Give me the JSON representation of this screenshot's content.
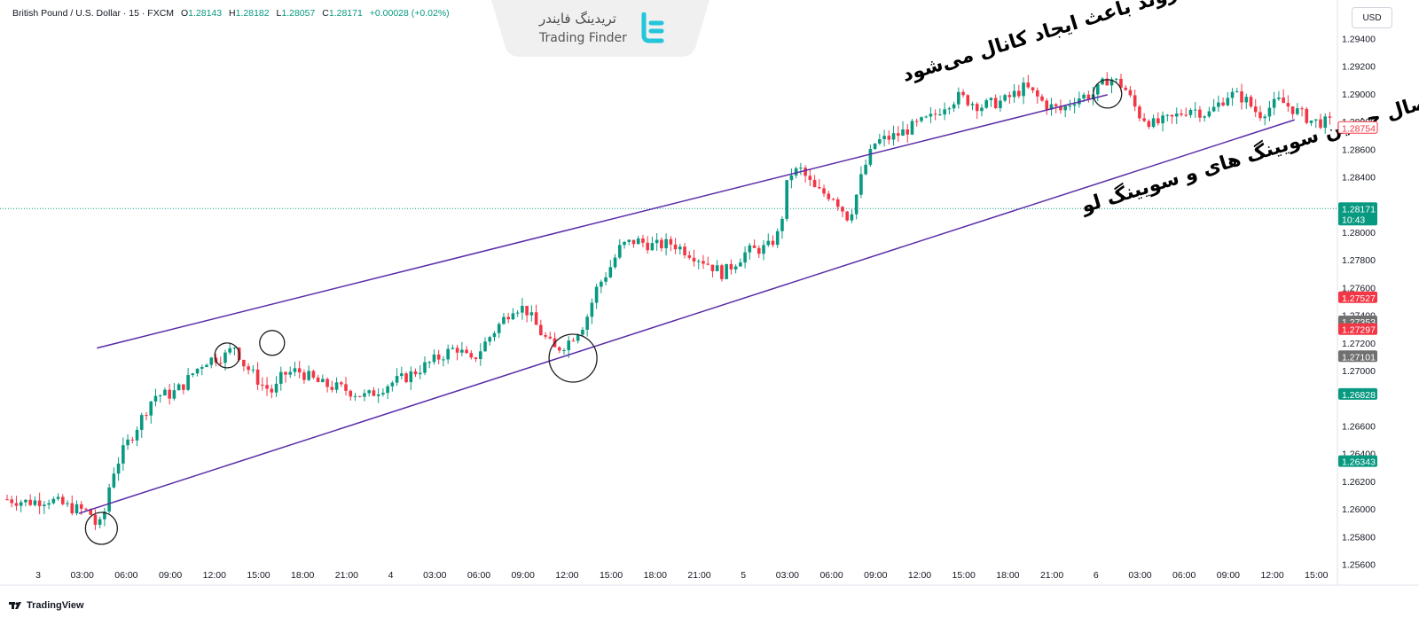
{
  "symbol_header": {
    "instrument": "British Pound / U.S. Dollar · 15 · FXCM",
    "open_label": "O",
    "open": "1.28143",
    "high_label": "H",
    "high": "1.28182",
    "low_label": "L",
    "low": "1.28057",
    "close_label": "C",
    "close": "1.28171",
    "change": "+0.00028 (+0.02%)"
  },
  "currency_button": "USD",
  "branding": {
    "name_fa": "تریدینگ فایندر",
    "name_en": "Trading Finder"
  },
  "price_axis": {
    "ticks": [
      "1.29400",
      "1.29200",
      "1.29000",
      "1.28800",
      "1.28600",
      "1.28400",
      "1.28000",
      "1.27800",
      "1.27600",
      "1.27400",
      "1.27200",
      "1.27000",
      "1.26600",
      "1.26400",
      "1.26200",
      "1.26000",
      "1.25800",
      "1.25600"
    ],
    "badges": [
      {
        "text": "1.28754",
        "price": 1.28754,
        "style": "outline-red"
      },
      {
        "text": "1.28171",
        "subtext": "10:43",
        "price": 1.28171,
        "style": "green"
      },
      {
        "text": "1.27527",
        "price": 1.27527,
        "style": "red"
      },
      {
        "text": "1.27353",
        "price": 1.27353,
        "style": "gray"
      },
      {
        "text": "1.27297",
        "price": 1.27297,
        "style": "red"
      },
      {
        "text": "1.27101",
        "price": 1.27101,
        "style": "gray"
      },
      {
        "text": "1.26828",
        "price": 1.26828,
        "style": "green"
      },
      {
        "text": "1.26343",
        "price": 1.26343,
        "style": "green"
      }
    ]
  },
  "time_axis": {
    "labels": [
      "3",
      "03:00",
      "06:00",
      "09:00",
      "12:00",
      "15:00",
      "18:00",
      "21:00",
      "4",
      "03:00",
      "06:00",
      "09:00",
      "12:00",
      "15:00",
      "18:00",
      "21:00",
      "5",
      "03:00",
      "06:00",
      "09:00",
      "12:00",
      "15:00",
      "18:00",
      "21:00",
      "6",
      "03:00",
      "06:00",
      "09:00",
      "12:00",
      "15:00"
    ]
  },
  "annotations": {
    "upper_text": "خط موازی هم راستا با خط روند باعث ایجاد کانال می‌شود",
    "lower_text_line1": "ایجاد خط روند با اتصال چندین سویینگ های و سویینگ لو"
  },
  "chart_data": {
    "type": "candlestick",
    "symbol": "GBPUSD",
    "timeframe": "15",
    "ylim": [
      1.2545,
      1.2955
    ],
    "path_points": [
      [
        0,
        1.2607
      ],
      [
        14,
        1.2605
      ],
      [
        28,
        1.2607
      ],
      [
        42,
        1.2601
      ],
      [
        55,
        1.2598
      ],
      [
        60,
        1.2587
      ],
      [
        64,
        1.259
      ],
      [
        66,
        1.2605
      ],
      [
        70,
        1.2625
      ],
      [
        78,
        1.2643
      ],
      [
        88,
        1.2662
      ],
      [
        98,
        1.2682
      ],
      [
        110,
        1.2683
      ],
      [
        118,
        1.269
      ],
      [
        124,
        1.2698
      ],
      [
        132,
        1.2707
      ],
      [
        146,
        1.2711
      ],
      [
        152,
        1.2718
      ],
      [
        158,
        1.2705
      ],
      [
        170,
        1.269
      ],
      [
        178,
        1.2684
      ],
      [
        184,
        1.2697
      ],
      [
        194,
        1.27
      ],
      [
        210,
        1.269
      ],
      [
        224,
        1.2687
      ],
      [
        240,
        1.2681
      ],
      [
        254,
        1.269
      ],
      [
        266,
        1.2695
      ],
      [
        286,
        1.2708
      ],
      [
        300,
        1.2717
      ],
      [
        310,
        1.2706
      ],
      [
        322,
        1.2724
      ],
      [
        338,
        1.2746
      ],
      [
        346,
        1.2745
      ],
      [
        356,
        1.2728
      ],
      [
        366,
        1.2715
      ],
      [
        374,
        1.272
      ],
      [
        386,
        1.2735
      ],
      [
        394,
        1.276
      ],
      [
        402,
        1.2773
      ],
      [
        410,
        1.279
      ],
      [
        420,
        1.2794
      ],
      [
        432,
        1.279
      ],
      [
        444,
        1.2792
      ],
      [
        456,
        1.2785
      ],
      [
        466,
        1.2779
      ],
      [
        478,
        1.277
      ],
      [
        494,
        1.2786
      ],
      [
        508,
        1.2789
      ],
      [
        516,
        1.28
      ],
      [
        522,
        1.2842
      ],
      [
        530,
        1.2845
      ],
      [
        540,
        1.283
      ],
      [
        552,
        1.2826
      ],
      [
        562,
        1.281
      ],
      [
        566,
        1.2822
      ],
      [
        572,
        1.2845
      ],
      [
        580,
        1.2865
      ],
      [
        594,
        1.287
      ],
      [
        608,
        1.2878
      ],
      [
        618,
        1.2883
      ],
      [
        626,
        1.2892
      ],
      [
        636,
        1.2898
      ],
      [
        650,
        1.2891
      ],
      [
        666,
        1.2895
      ],
      [
        680,
        1.2905
      ],
      [
        694,
        1.2892
      ],
      [
        704,
        1.2888
      ],
      [
        714,
        1.2897
      ],
      [
        726,
        1.29
      ],
      [
        736,
        1.2912
      ],
      [
        746,
        1.2905
      ],
      [
        756,
        1.2885
      ],
      [
        766,
        1.2878
      ],
      [
        778,
        1.2882
      ],
      [
        790,
        1.289
      ],
      [
        802,
        1.2885
      ],
      [
        816,
        1.29
      ],
      [
        826,
        1.2897
      ],
      [
        836,
        1.2885
      ],
      [
        850,
        1.2895
      ],
      [
        862,
        1.2887
      ],
      [
        872,
        1.288
      ],
      [
        885,
        1.2879
      ]
    ],
    "upper_channel_line": {
      "x1": 0,
      "y1": 1.27,
      "x2": 885,
      "y2": 1.294
    },
    "lower_trend_line": {
      "x1": 0,
      "y1": 1.258,
      "x2": 885,
      "y2": 1.289
    },
    "circles": [
      {
        "x": 63,
        "price": 1.2586
      },
      {
        "x": 147,
        "price": 1.2711
      },
      {
        "x": 177,
        "price": 1.272
      },
      {
        "x": 378,
        "price": 1.2709
      },
      {
        "x": 735,
        "price": 1.29
      }
    ],
    "last_price": 1.28171
  }
}
